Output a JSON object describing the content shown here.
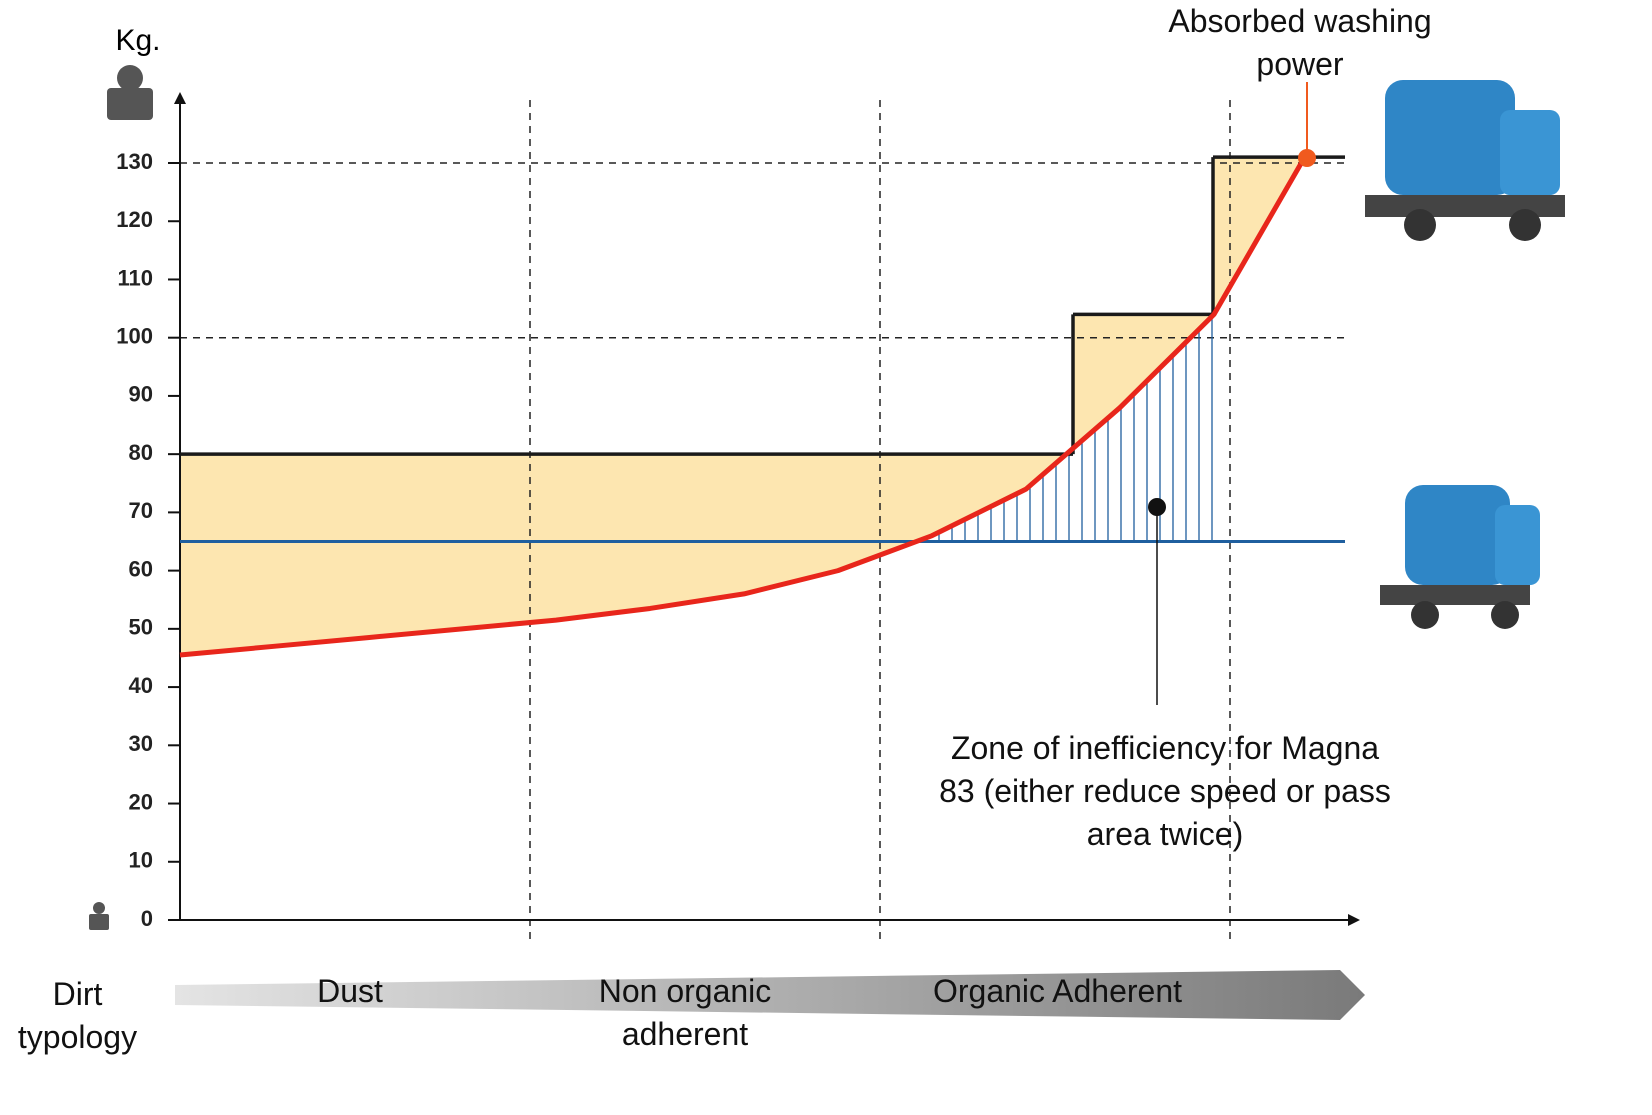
{
  "chart_data": {
    "type": "line",
    "y_label": "Kg.",
    "x_label": "Dirt typology",
    "bands": [
      "Dust",
      "Non organic adherent",
      "Organic Adherent"
    ],
    "ylim": [
      0,
      130
    ],
    "yticks": [
      0,
      10,
      20,
      30,
      40,
      50,
      60,
      70,
      80,
      90,
      100,
      110,
      120,
      130
    ],
    "reference_lines": [
      100,
      130
    ],
    "categories": [
      null,
      null,
      null,
      null,
      null,
      null,
      null,
      null,
      null,
      null,
      null,
      null,
      null
    ],
    "series": [
      {
        "color": "#e8261b",
        "values": [
          45.5,
          47,
          48.5,
          50,
          51.5,
          53.5,
          56,
          60,
          66,
          74,
          88,
          104,
          132
        ]
      }
    ],
    "machine_capacity": {
      "color": "#1a1a1a",
      "values": [
        80,
        104,
        131
      ]
    },
    "small_machine": {
      "color": "#1f5f9f",
      "value": 65
    },
    "fill_color": "#fde6b0",
    "annotations": [
      "Absorbed washing power",
      "Zone of inefficiency for Magna 83 (either reduce speed or pass area twice)"
    ]
  }
}
